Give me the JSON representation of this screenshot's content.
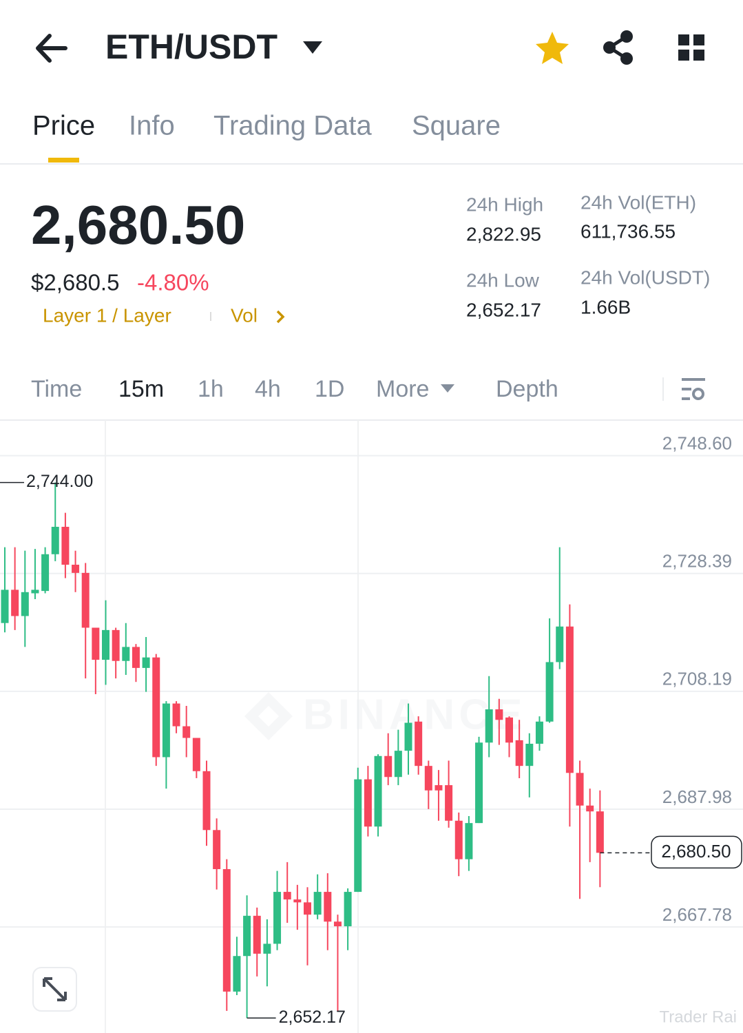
{
  "header": {
    "title": "ETH/USDT"
  },
  "tabs": [
    "Price",
    "Info",
    "Trading Data",
    "Square"
  ],
  "ticker": {
    "price": "2,680.50",
    "usd_price": "$2,680.5",
    "change": "-4.80%",
    "tags": "Layer 1 / Layer",
    "vol_link": "Vol"
  },
  "stats": [
    {
      "label": "24h High",
      "value": "2,822.95"
    },
    {
      "label": "24h Low",
      "value": "2,652.17"
    },
    {
      "label": "24h Vol(ETH)",
      "value": "611,736.55"
    },
    {
      "label": "24h Vol(USDT)",
      "value": "1.66B"
    }
  ],
  "intervals": [
    "Time",
    "15m",
    "1h",
    "4h",
    "1D",
    "More",
    "Depth"
  ],
  "watermarks": [
    "BINANCE",
    "Trader Rai"
  ],
  "chart_data": {
    "type": "candlestick",
    "up_color": "#2ebd85",
    "down_color": "#f6465d",
    "grid": true,
    "ylim": [
      2649.6,
      2754.7
    ],
    "yticks": [
      {
        "value": 2748.6,
        "label": "2,748.60"
      },
      {
        "value": 2728.39,
        "label": "2,728.39"
      },
      {
        "value": 2708.19,
        "label": "2,708.19"
      },
      {
        "value": 2687.98,
        "label": "2,687.98"
      },
      {
        "value": 2667.78,
        "label": "2,667.78"
      }
    ],
    "series": {
      "open": [
        2719.9,
        2725.6,
        2721.1,
        2725.0,
        2725.4,
        2731.7,
        2736.4,
        2729.9,
        2728.5,
        2719.1,
        2713.6,
        2718.7,
        2713.4,
        2715.8,
        2712.2,
        2714.0,
        2696.9,
        2706.1,
        2702.2,
        2700.2,
        2694.5,
        2684.4,
        2677.7,
        2656.7,
        2662.8,
        2669.7,
        2663.2,
        2664.9,
        2673.8,
        2672.5,
        2672.0,
        2669.9,
        2673.8,
        2668.7,
        2667.9,
        2673.8,
        2693.1,
        2685.0,
        2697.1,
        2693.5,
        2698.0,
        2703.0,
        2695.4,
        2692.1,
        2692.1,
        2686.0,
        2679.4,
        2685.6,
        2699.4,
        2705.1,
        2703.7,
        2699.8,
        2695.4,
        2699.2,
        2703.0,
        2713.2,
        2719.3,
        2694.2,
        2688.6,
        2687.6
      ],
      "high": [
        2732.9,
        2732.9,
        2732.3,
        2732.6,
        2732.9,
        2744.0,
        2738.8,
        2732.3,
        2730.2,
        2719.1,
        2723.8,
        2719.1,
        2719.9,
        2716.3,
        2717.5,
        2714.6,
        2706.5,
        2706.5,
        2705.7,
        2700.2,
        2696.3,
        2686.4,
        2679.4,
        2666.1,
        2673.2,
        2671.1,
        2669.1,
        2677.4,
        2678.9,
        2675.0,
        2674.6,
        2676.8,
        2677.0,
        2669.9,
        2674.4,
        2695.1,
        2695.4,
        2697.4,
        2701.0,
        2701.6,
        2706.1,
        2703.9,
        2696.3,
        2694.7,
        2696.3,
        2687.4,
        2686.8,
        2700.4,
        2710.8,
        2706.9,
        2703.9,
        2703.3,
        2701.0,
        2703.9,
        2720.7,
        2732.9,
        2723.1,
        2696.3,
        2691.5,
        2691.2
      ],
      "low": [
        2718.3,
        2718.7,
        2715.8,
        2724.0,
        2725.0,
        2730.5,
        2727.6,
        2725.2,
        2710.4,
        2707.7,
        2709.3,
        2710.4,
        2711.0,
        2709.8,
        2708.1,
        2695.4,
        2691.5,
        2701.0,
        2696.9,
        2693.3,
        2681.7,
        2674.2,
        2653.4,
        2656.1,
        2652.17,
        2659.3,
        2657.6,
        2663.8,
        2668.5,
        2667.3,
        2661.2,
        2669.1,
        2663.8,
        2653.4,
        2663.8,
        2673.8,
        2683.3,
        2683.3,
        2692.1,
        2692.1,
        2693.9,
        2693.9,
        2688.0,
        2686.0,
        2684.8,
        2676.5,
        2677.4,
        2685.6,
        2696.9,
        2699.0,
        2696.9,
        2693.3,
        2690.0,
        2698.0,
        2702.8,
        2712.0,
        2685.0,
        2672.6,
        2678.9,
        2674.6
      ],
      "close": [
        2725.6,
        2721.1,
        2725.2,
        2725.6,
        2731.7,
        2736.4,
        2729.9,
        2728.5,
        2719.1,
        2713.6,
        2718.7,
        2713.4,
        2715.8,
        2712.2,
        2714.0,
        2696.9,
        2706.1,
        2702.2,
        2700.2,
        2694.5,
        2684.4,
        2677.7,
        2656.7,
        2662.8,
        2669.7,
        2663.2,
        2664.9,
        2673.8,
        2672.5,
        2672.0,
        2669.9,
        2673.8,
        2668.7,
        2667.9,
        2673.8,
        2693.1,
        2685.0,
        2697.1,
        2693.5,
        2698.0,
        2702.8,
        2695.4,
        2691.2,
        2691.2,
        2686.0,
        2679.4,
        2685.6,
        2699.4,
        2705.1,
        2703.3,
        2699.4,
        2695.4,
        2699.2,
        2703.0,
        2713.2,
        2719.3,
        2694.2,
        2688.6,
        2687.6,
        2680.5
      ]
    },
    "high_marker": {
      "value": 2744.0,
      "label": "2,744.00"
    },
    "low_marker": {
      "value": 2652.17,
      "label": "2,652.17"
    },
    "last_price": {
      "value": 2680.5,
      "label": "2,680.50"
    }
  }
}
